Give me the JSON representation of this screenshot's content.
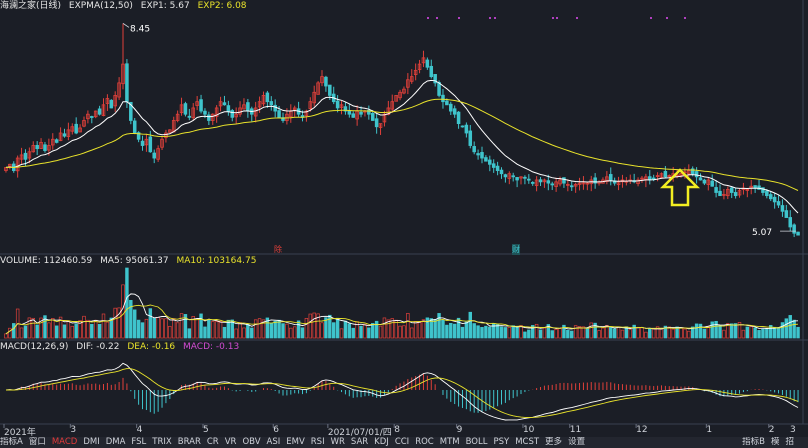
{
  "price_header": {
    "stock_name": "海澜之家(日线)",
    "indicator": "EXPMA(12,50)",
    "exp1": "EXP1: 5.67",
    "exp2": "EXP2: 6.08"
  },
  "volume_header": {
    "label": "VOLUME: 112460.59",
    "ma5": "MA5: 95061.37",
    "ma10": "MA10: 103164.75"
  },
  "macd_header": {
    "label": "MACD(12,26,9)",
    "dif": "DIF: -0.22",
    "dea": "DEA: -0.16",
    "macd": "MACD: -0.13"
  },
  "price_annotations": {
    "high": "8.45",
    "low": "5.07"
  },
  "event_badges": {
    "ex_rights": "除",
    "report": "财"
  },
  "x_axis_labels": [
    {
      "text": "2021年",
      "i": 0
    },
    {
      "text": "3",
      "i": 17
    },
    {
      "text": "4",
      "i": 34
    },
    {
      "text": "5",
      "i": 51
    },
    {
      "text": "6",
      "i": 69
    },
    {
      "text": "2021/07/01/四",
      "i": 83
    },
    {
      "text": "8",
      "i": 100
    },
    {
      "text": "9",
      "i": 116
    },
    {
      "text": "10",
      "i": 133
    },
    {
      "text": "11",
      "i": 145
    },
    {
      "text": "12",
      "i": 162
    },
    {
      "text": "1",
      "i": 180
    },
    {
      "text": "2",
      "i": 196
    },
    {
      "text": "3",
      "i": 211
    }
  ],
  "bottom_tabs": [
    "指标A",
    "窗口",
    "MACD",
    "DMI",
    "DMA",
    "FSL",
    "TRIX",
    "BRAR",
    "CR",
    "VR",
    "OBV",
    "ASI",
    "EMV",
    "RSI",
    "WR",
    "SAR",
    "KDJ",
    "CCI",
    "ROC",
    "MTM",
    "BOLL",
    "PSY",
    "MCST",
    "更多",
    "设置"
  ],
  "active_tab": "MACD",
  "right_tabs": [
    "指标B",
    "模",
    "招"
  ],
  "colors": {
    "up": "#e0403a",
    "down": "#3fc4cc",
    "exp1": "#ffffff",
    "exp2": "#e8e22b",
    "arrow": "#f2ee22",
    "background": "#1b1e26"
  },
  "chart_data": {
    "type": "candlestick",
    "price_range": [
      4.8,
      8.6
    ],
    "closes": [
      6.15,
      6.2,
      6.1,
      6.3,
      6.35,
      6.28,
      6.4,
      6.5,
      6.45,
      6.55,
      6.42,
      6.5,
      6.6,
      6.55,
      6.7,
      6.65,
      6.75,
      6.8,
      6.7,
      6.78,
      6.9,
      7.0,
      6.95,
      7.05,
      7.0,
      7.15,
      7.25,
      7.1,
      7.3,
      7.5,
      7.8,
      7.2,
      6.9,
      6.7,
      6.6,
      6.5,
      6.6,
      6.4,
      6.3,
      6.45,
      6.6,
      6.7,
      6.75,
      6.9,
      7.0,
      7.15,
      7.0,
      6.95,
      7.1,
      7.2,
      7.05,
      7.0,
      6.9,
      7.0,
      7.1,
      7.2,
      7.15,
      7.05,
      6.95,
      7.0,
      7.1,
      7.15,
      7.05,
      7.0,
      7.1,
      7.2,
      7.3,
      7.2,
      7.15,
      7.05,
      6.95,
      6.9,
      7.0,
      7.05,
      7.1,
      7.0,
      6.95,
      7.05,
      7.2,
      7.35,
      7.5,
      7.6,
      7.45,
      7.3,
      7.2,
      7.1,
      7.15,
      7.05,
      7.0,
      6.95,
      7.05,
      7.0,
      7.05,
      7.0,
      6.9,
      6.8,
      6.85,
      7.0,
      7.1,
      7.2,
      7.3,
      7.35,
      7.4,
      7.55,
      7.6,
      7.7,
      7.8,
      7.9,
      7.75,
      7.6,
      7.5,
      7.3,
      7.2,
      7.15,
      7.05,
      7.0,
      6.85,
      6.8,
      6.7,
      6.5,
      6.4,
      6.35,
      6.3,
      6.25,
      6.2,
      6.15,
      6.1,
      6.05,
      6.0,
      6.05,
      6.0,
      5.95,
      6.0,
      5.98,
      5.95,
      5.9,
      5.95,
      5.92,
      5.95,
      5.9,
      5.88,
      5.92,
      5.95,
      5.9,
      5.88,
      5.85,
      5.88,
      5.9,
      5.92,
      5.9,
      5.95,
      5.9,
      5.92,
      5.95,
      6.0,
      5.95,
      5.9,
      5.92,
      5.95,
      5.93,
      5.95,
      5.92,
      5.95,
      5.98,
      6.0,
      5.95,
      5.97,
      6.02,
      6.05,
      6.0,
      6.02,
      6.05,
      6.03,
      6.05,
      6.08,
      6.1,
      6.05,
      6.0,
      5.95,
      5.9,
      5.95,
      5.85,
      5.75,
      5.7,
      5.72,
      5.8,
      5.75,
      5.7,
      5.78,
      5.82,
      5.8,
      5.85,
      5.82,
      5.8,
      5.75,
      5.7,
      5.65,
      5.6,
      5.55,
      5.45,
      5.35,
      5.2,
      5.1,
      5.07
    ],
    "exp1_values": "EMA(12) of closes",
    "exp2_values": "EMA(50) of closes",
    "volume_header_values": {
      "volume": 112460.59,
      "ma5": 95061.37,
      "ma10": 103164.75
    },
    "macd_values": {
      "dif": -0.22,
      "dea": -0.16,
      "macd": -0.13
    }
  }
}
